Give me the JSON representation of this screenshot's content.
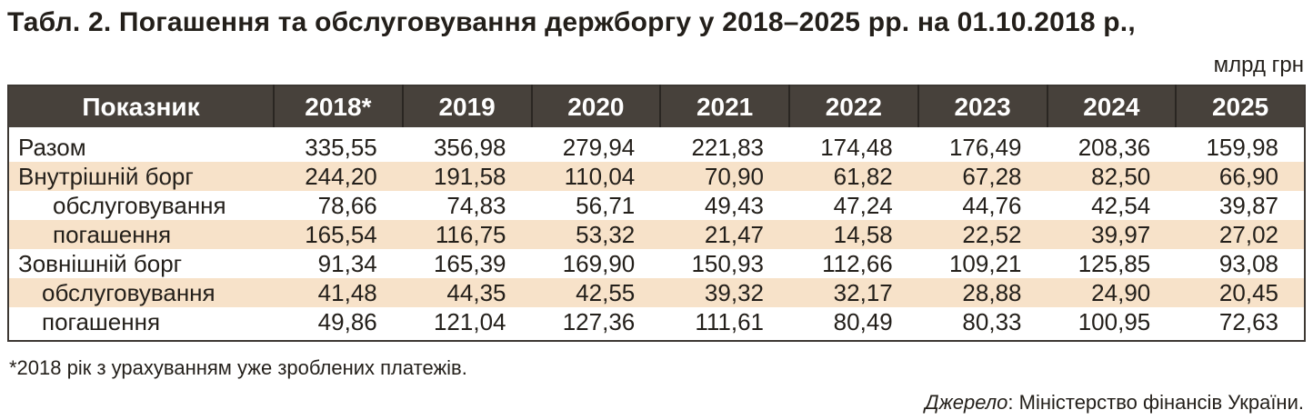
{
  "title": "Табл. 2. Погашення та обслуговування держборгу у 2018–2025 рр. на 01.10.2018 р.,",
  "unit": "млрд грн",
  "table": {
    "headers": [
      "Показник",
      "2018*",
      "2019",
      "2020",
      "2021",
      "2022",
      "2023",
      "2024",
      "2025"
    ],
    "rows": [
      {
        "label": "Разом",
        "values": [
          "335,55",
          "356,98",
          "279,94",
          "221,83",
          "174,48",
          "176,49",
          "208,36",
          "159,98"
        ]
      },
      {
        "label": "Внутрішній борг",
        "values": [
          "244,20",
          "191,58",
          "110,04",
          "70,90",
          "61,82",
          "67,28",
          "82,50",
          "66,90"
        ]
      },
      {
        "label": "обслуговування",
        "values": [
          "78,66",
          "74,83",
          "56,71",
          "49,43",
          "47,24",
          "44,76",
          "42,54",
          "39,87"
        ]
      },
      {
        "label": "погашення",
        "values": [
          "165,54",
          "116,75",
          "53,32",
          "21,47",
          "14,58",
          "22,52",
          "39,97",
          "27,02"
        ]
      },
      {
        "label": "Зовнішній борг",
        "values": [
          "91,34",
          "165,39",
          "169,90",
          "150,93",
          "112,66",
          "109,21",
          "125,85",
          "93,08"
        ]
      },
      {
        "label": "обслуговування",
        "values": [
          "41,48",
          "44,35",
          "42,55",
          "39,32",
          "32,17",
          "28,88",
          "24,90",
          "20,45"
        ]
      },
      {
        "label": "погашення",
        "values": [
          "49,86",
          "121,04",
          "127,36",
          "111,61",
          "80,49",
          "80,33",
          "100,95",
          "72,63"
        ]
      }
    ]
  },
  "footnote": "*2018 рік з урахуванням уже зроблених платежів.",
  "source": {
    "label": "Джерело",
    "text": ": Міністерство фінансів України."
  },
  "colors": {
    "header_bg": "#47413b",
    "row_shade": "#f7e2c9",
    "text": "#231f1a"
  }
}
